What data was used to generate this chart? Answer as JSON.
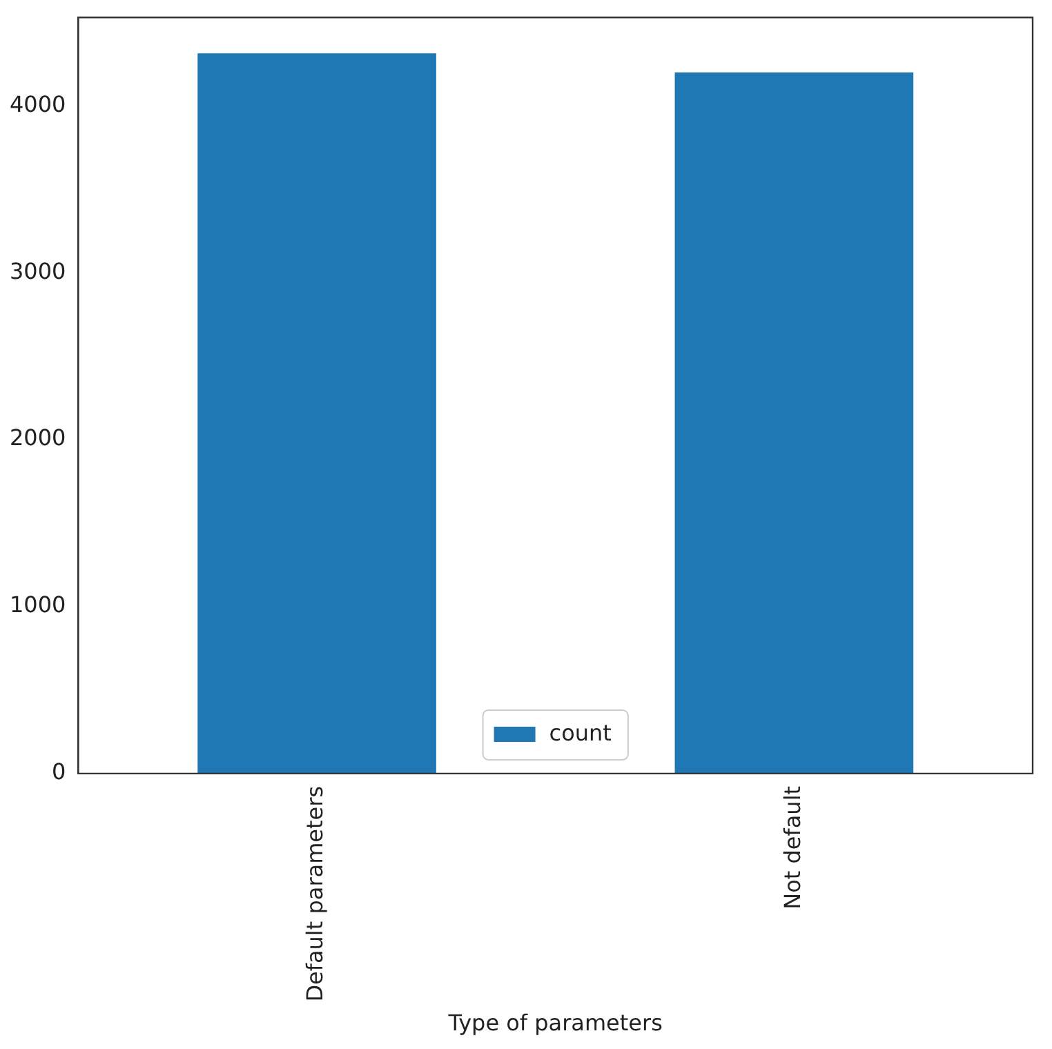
{
  "chart_data": {
    "type": "bar",
    "xlabel": "Type of parameters",
    "categories": [
      "Default parameters",
      "Not default"
    ],
    "series": [
      {
        "name": "count",
        "color": "#1f77b4",
        "values": [
          4315,
          4200
        ]
      }
    ],
    "ylim": [
      0,
      4530
    ],
    "yticks": [
      0,
      1000,
      2000,
      3000,
      4000
    ],
    "grid": false,
    "legend": "bottom"
  }
}
